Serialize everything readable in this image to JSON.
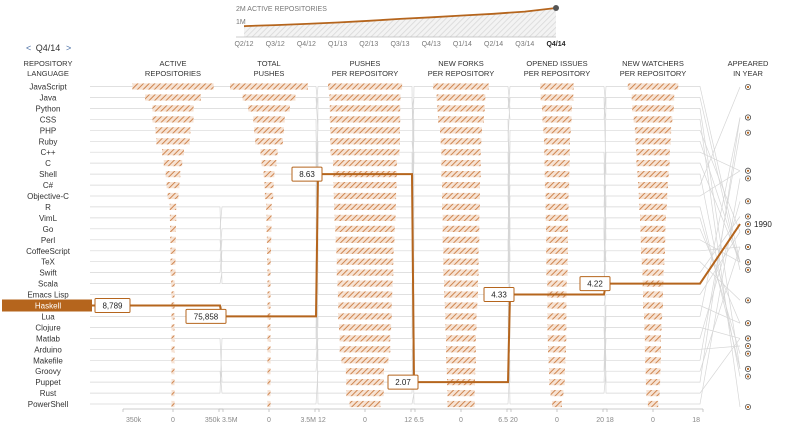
{
  "quarter_nav": {
    "label": "Q4/14",
    "prev": "<",
    "next": ">"
  },
  "header": {
    "language": [
      "REPOSITORY",
      "LANGUAGE"
    ],
    "active": [
      "ACTIVE",
      "REPOSITORIES"
    ],
    "pushes": [
      "TOTAL",
      "PUSHES"
    ],
    "ppr": [
      "PUSHES",
      "PER REPOSITORY"
    ],
    "forks": [
      "NEW FORKS",
      "PER REPOSITORY"
    ],
    "issues": [
      "OPENED ISSUES",
      "PER REPOSITORY"
    ],
    "watchers": [
      "NEW WATCHERS",
      "PER REPOSITORY"
    ],
    "year": [
      "APPEARED",
      "IN YEAR"
    ]
  },
  "selected": {
    "language": "Haskell",
    "active": "8,789",
    "pushes": "75,858",
    "ppr": "8.63",
    "forks": "2.07",
    "issues": "4.33",
    "watchers": "4.22",
    "year": "1990"
  },
  "axis_labels": {
    "active": [
      "350k",
      "0",
      "350k"
    ],
    "pushes": [
      "3.5M",
      "0",
      "3.5M"
    ],
    "ppr": [
      "12",
      "0",
      "12"
    ],
    "forks": [
      "6.5",
      "0",
      "6.5"
    ],
    "issues": [
      "20",
      "0",
      "20"
    ],
    "watchers": [
      "18",
      "0",
      "18"
    ]
  },
  "colors": {
    "accent": "#b5651d",
    "bar": "#d08a55",
    "line": "#cccccc",
    "text": "#333333",
    "label": "#4a6fa5"
  },
  "chart_data": [
    {
      "type": "line",
      "title": "2M ACTIVE REPOSITORIES",
      "ylabel": "1M",
      "categories": [
        "Q2/12",
        "Q3/12",
        "Q4/12",
        "Q1/13",
        "Q2/13",
        "Q3/13",
        "Q4/13",
        "Q1/14",
        "Q2/14",
        "Q3/14",
        "Q4/14"
      ],
      "values": [
        0.75,
        0.82,
        0.9,
        1.0,
        1.12,
        1.25,
        1.36,
        1.48,
        1.6,
        1.75,
        2.0
      ],
      "ylim": [
        0,
        2.0
      ]
    },
    {
      "type": "table",
      "languages": [
        "JavaScript",
        "Java",
        "Python",
        "CSS",
        "PHP",
        "Ruby",
        "C++",
        "C",
        "Shell",
        "C#",
        "Objective-C",
        "R",
        "VimL",
        "Go",
        "Perl",
        "CoffeeScript",
        "TeX",
        "Swift",
        "Scala",
        "Emacs Lisp",
        "Haskell",
        "Lua",
        "Clojure",
        "Matlab",
        "Arduino",
        "Makefile",
        "Groovy",
        "Puppet",
        "Rust",
        "PowerShell"
      ],
      "active_repositories": [
        323000,
        222000,
        164000,
        163000,
        139000,
        132000,
        87000,
        73000,
        58000,
        51000,
        43000,
        26000,
        25000,
        23000,
        22000,
        20000,
        19500,
        19000,
        14000,
        12000,
        8789,
        8500,
        8200,
        7900,
        7500,
        7200,
        6800,
        6500,
        6200,
        5800
      ],
      "total_pushes": [
        3100000,
        2100000,
        1650000,
        1250000,
        1180000,
        1100000,
        680000,
        590000,
        430000,
        360000,
        330000,
        110000,
        200000,
        220000,
        140000,
        190000,
        170000,
        160000,
        120000,
        90000,
        75858,
        80000,
        60000,
        40000,
        55000,
        50000,
        35000,
        45000,
        60000,
        30000
      ],
      "pushes_per_repository": [
        9.6,
        9.5,
        10.1,
        7.7,
        8.5,
        8.3,
        7.8,
        8.1,
        7.4,
        7.1,
        7.7,
        4.2,
        8.0,
        9.6,
        6.4,
        9.5,
        8.7,
        8.4,
        8.6,
        7.5,
        8.63,
        9.4,
        7.3,
        5.1,
        7.3,
        6.9,
        5.1,
        6.9,
        9.7,
        5.2
      ],
      "new_forks_per_repository": [
        3.6,
        3.1,
        2.6,
        3.4,
        2.8,
        2.5,
        2.9,
        2.6,
        2.8,
        2.7,
        2.8,
        2.0,
        2.4,
        3.5,
        2.3,
        2.9,
        2.2,
        4.1,
        2.7,
        2.0,
        2.07,
        2.6,
        2.2,
        2.5,
        2.9,
        2.7,
        2.3,
        2.1,
        3.0,
        2.2
      ],
      "opened_issues_per_repository": [
        6.6,
        5.6,
        6.2,
        4.9,
        5.7,
        5.9,
        4.8,
        5.2,
        4.9,
        5.0,
        5.2,
        2.9,
        4.3,
        7.6,
        3.5,
        5.8,
        4.3,
        6.8,
        5.5,
        3.8,
        4.33,
        4.8,
        4.4,
        2.2,
        4.2,
        4.3,
        3.6,
        5.1,
        7.4,
        4.1
      ],
      "new_watchers_per_repository": [
        10.3,
        6.8,
        7.4,
        8.7,
        5.0,
        7.2,
        5.8,
        6.1,
        4.3,
        4.6,
        6.9,
        3.0,
        4.1,
        8.5,
        3.3,
        5.6,
        3.2,
        7.9,
        5.1,
        3.7,
        4.22,
        4.9,
        5.3,
        2.1,
        3.5,
        2.9,
        4.1,
        2.7,
        6.4,
        3.3
      ],
      "appeared_in_year": [
        1995,
        1995,
        1991,
        1996,
        1995,
        1995,
        1983,
        1972,
        1989,
        2000,
        1983,
        1993,
        1991,
        2009,
        1987,
        2009,
        1978,
        2014,
        2003,
        1976,
        1990,
        1993,
        2007,
        1984,
        2005,
        1976,
        2003,
        2005,
        2010,
        2006
      ],
      "axis_ranges": {
        "active_repositories": [
          -350000,
          350000
        ],
        "total_pushes": [
          -3500000,
          3500000
        ],
        "pushes_per_repository": [
          -12,
          12
        ],
        "new_forks_per_repository": [
          -6.5,
          6.5
        ],
        "opened_issues_per_repository": [
          -20,
          20
        ],
        "new_watchers_per_repository": [
          -18,
          18
        ]
      },
      "sort": "descending per column",
      "highlight": "Haskell"
    }
  ]
}
